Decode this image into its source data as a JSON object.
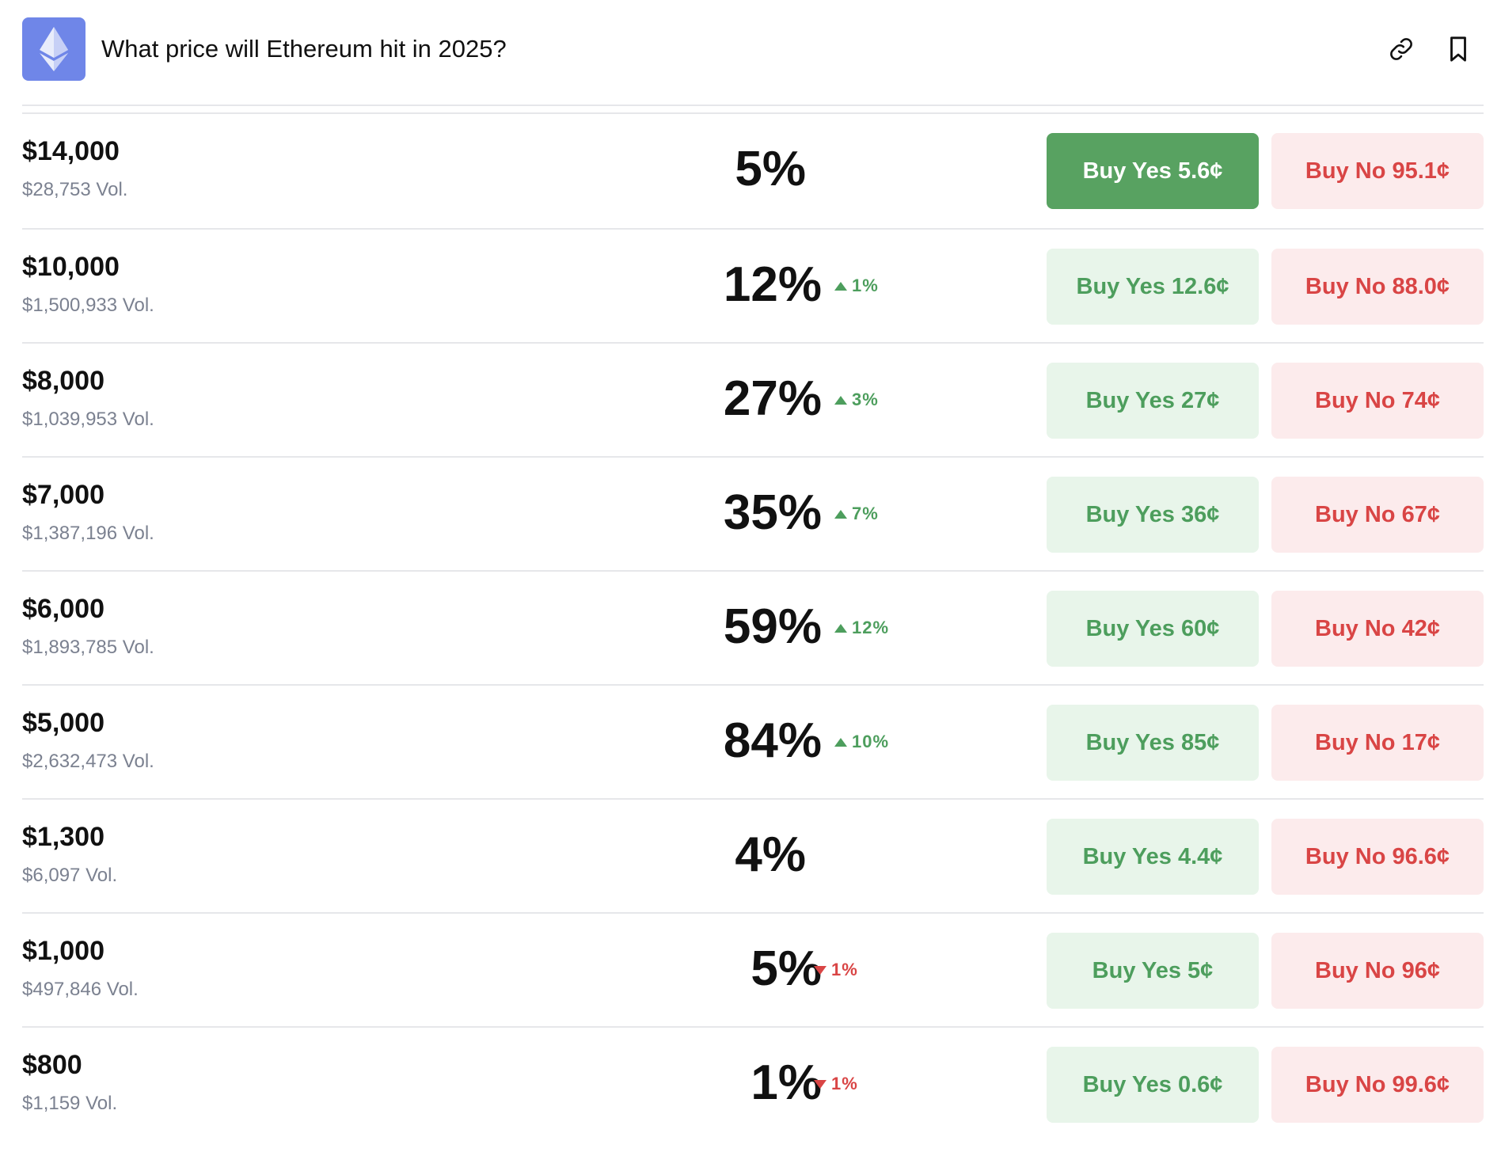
{
  "market": {
    "title": "What price will Ethereum hit in 2025?",
    "logo_icon": "ethereum-icon",
    "logo_color": "#6f86e8",
    "actions": [
      {
        "name": "link",
        "icon": "link-icon"
      },
      {
        "name": "bookmark",
        "icon": "bookmark-icon"
      }
    ]
  },
  "colors": {
    "yes_text": "#4d9e5d",
    "yes_bg": "#e8f5ea",
    "yes_active_bg": "#58a261",
    "no_text": "#d94545",
    "no_bg": "#fcebec",
    "muted": "#7b8190"
  },
  "outcomes": [
    {
      "price": "$14,000",
      "volume": "$28,753 Vol.",
      "chance": "5%",
      "delta": "",
      "direction": "none",
      "buy_yes": "Buy Yes 5.6¢",
      "buy_no": "Buy No 95.1¢",
      "yes_active": true
    },
    {
      "price": "$10,000",
      "volume": "$1,500,933 Vol.",
      "chance": "12%",
      "delta": "1%",
      "direction": "up",
      "buy_yes": "Buy Yes 12.6¢",
      "buy_no": "Buy No 88.0¢",
      "yes_active": false
    },
    {
      "price": "$8,000",
      "volume": "$1,039,953 Vol.",
      "chance": "27%",
      "delta": "3%",
      "direction": "up",
      "buy_yes": "Buy Yes 27¢",
      "buy_no": "Buy No 74¢",
      "yes_active": false
    },
    {
      "price": "$7,000",
      "volume": "$1,387,196 Vol.",
      "chance": "35%",
      "delta": "7%",
      "direction": "up",
      "buy_yes": "Buy Yes 36¢",
      "buy_no": "Buy No 67¢",
      "yes_active": false
    },
    {
      "price": "$6,000",
      "volume": "$1,893,785 Vol.",
      "chance": "59%",
      "delta": "12%",
      "direction": "up",
      "buy_yes": "Buy Yes 60¢",
      "buy_no": "Buy No 42¢",
      "yes_active": false
    },
    {
      "price": "$5,000",
      "volume": "$2,632,473 Vol.",
      "chance": "84%",
      "delta": "10%",
      "direction": "up",
      "buy_yes": "Buy Yes 85¢",
      "buy_no": "Buy No 17¢",
      "yes_active": false
    },
    {
      "price": "$1,300",
      "volume": "$6,097 Vol.",
      "chance": "4%",
      "delta": "",
      "direction": "none",
      "buy_yes": "Buy Yes 4.4¢",
      "buy_no": "Buy No 96.6¢",
      "yes_active": false
    },
    {
      "price": "$1,000",
      "volume": "$497,846 Vol.",
      "chance": "5%",
      "delta": "1%",
      "direction": "down",
      "buy_yes": "Buy Yes 5¢",
      "buy_no": "Buy No 96¢",
      "yes_active": false
    },
    {
      "price": "$800",
      "volume": "$1,159 Vol.",
      "chance": "1%",
      "delta": "1%",
      "direction": "down",
      "buy_yes": "Buy Yes 0.6¢",
      "buy_no": "Buy No 99.6¢",
      "yes_active": false
    }
  ]
}
